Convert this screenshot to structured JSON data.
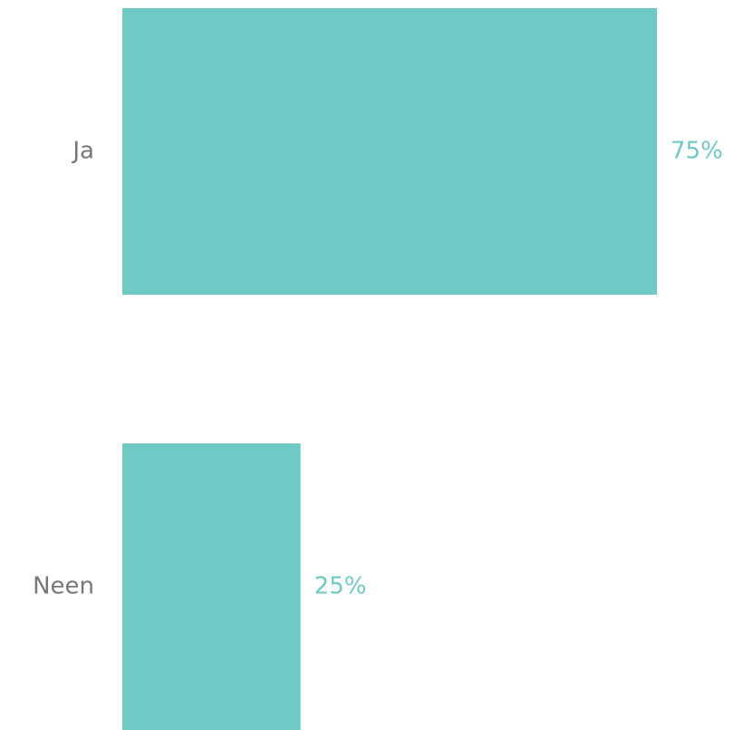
{
  "chart_data": {
    "type": "bar",
    "orientation": "horizontal",
    "categories": [
      "Ja",
      "Neen"
    ],
    "values": [
      75,
      25
    ],
    "value_labels": [
      "75%",
      "25%"
    ],
    "color": "#6fc9c4"
  }
}
